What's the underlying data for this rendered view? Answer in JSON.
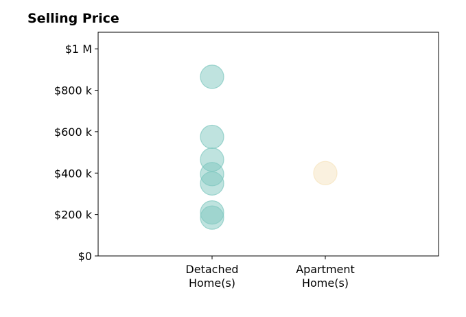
{
  "chart_data": {
    "type": "scatter",
    "title": "Selling Price",
    "xlabel": "",
    "ylabel": "",
    "categories": [
      {
        "line1": "Detached",
        "line2": "Home(s)"
      },
      {
        "line1": "Apartment",
        "line2": "Home(s)"
      }
    ],
    "ylim": [
      0,
      1080000
    ],
    "yticks": [
      {
        "value": 0,
        "label": "$0"
      },
      {
        "value": 200000,
        "label": "$200 k"
      },
      {
        "value": 400000,
        "label": "$400 k"
      },
      {
        "value": 600000,
        "label": "$600 k"
      },
      {
        "value": 800000,
        "label": "$800 k"
      },
      {
        "value": 1000000,
        "label": "$1 M"
      }
    ],
    "grid": false,
    "series": [
      {
        "category_index": 0,
        "color": "#80c8c0",
        "values": [
          865000,
          575000,
          465000,
          395000,
          350000,
          210000,
          185000
        ]
      },
      {
        "category_index": 1,
        "color": "#f5e4bf",
        "values": [
          400000
        ]
      }
    ]
  }
}
